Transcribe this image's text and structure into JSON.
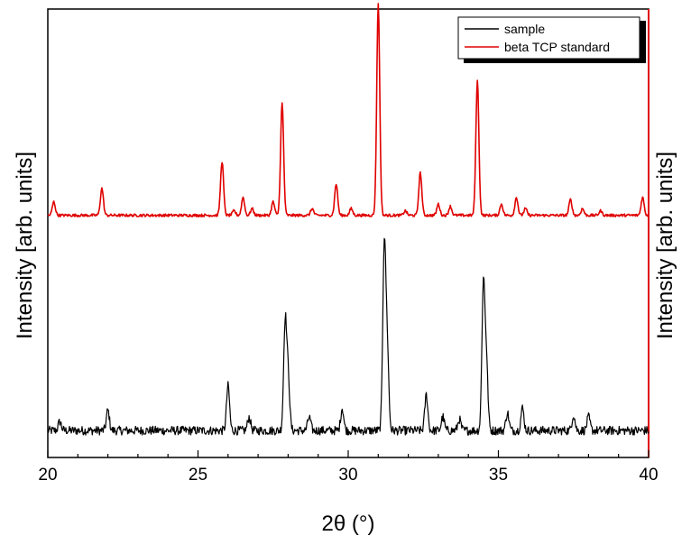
{
  "chart_data": {
    "type": "line",
    "xlabel": "2θ (°)",
    "ylabel_left": "Intensity [arb. units]",
    "ylabel_right": "Intensity [arb. units]",
    "xlim": [
      20,
      40
    ],
    "ylim": [
      0,
      1
    ],
    "x_ticks": [
      20,
      25,
      30,
      35,
      40
    ],
    "grid": false,
    "legend_position": "top-right",
    "series": [
      {
        "name": "sample",
        "color": "#000000",
        "baseline": 0.06,
        "noise": 0.01,
        "peaks": [
          {
            "x": 20.4,
            "h": 0.02
          },
          {
            "x": 22.0,
            "h": 0.045
          },
          {
            "x": 26.0,
            "h": 0.1
          },
          {
            "x": 26.7,
            "h": 0.03
          },
          {
            "x": 27.9,
            "h": 0.24
          },
          {
            "x": 28.0,
            "h": 0.12
          },
          {
            "x": 28.7,
            "h": 0.03
          },
          {
            "x": 29.8,
            "h": 0.05
          },
          {
            "x": 31.2,
            "h": 0.41
          },
          {
            "x": 31.3,
            "h": 0.18
          },
          {
            "x": 32.6,
            "h": 0.08
          },
          {
            "x": 33.15,
            "h": 0.03
          },
          {
            "x": 33.7,
            "h": 0.025
          },
          {
            "x": 34.5,
            "h": 0.32
          },
          {
            "x": 34.6,
            "h": 0.15
          },
          {
            "x": 35.3,
            "h": 0.04
          },
          {
            "x": 35.8,
            "h": 0.05
          },
          {
            "x": 37.5,
            "h": 0.035
          },
          {
            "x": 38.0,
            "h": 0.03
          }
        ]
      },
      {
        "name": "beta TCP standard",
        "color": "#e00000",
        "baseline": 0.54,
        "noise": 0.003,
        "peaks": [
          {
            "x": 20.2,
            "h": 0.03
          },
          {
            "x": 21.8,
            "h": 0.06
          },
          {
            "x": 25.8,
            "h": 0.12
          },
          {
            "x": 26.2,
            "h": 0.01
          },
          {
            "x": 26.5,
            "h": 0.04
          },
          {
            "x": 26.8,
            "h": 0.015
          },
          {
            "x": 27.5,
            "h": 0.03
          },
          {
            "x": 27.8,
            "h": 0.25
          },
          {
            "x": 28.8,
            "h": 0.015
          },
          {
            "x": 29.6,
            "h": 0.07
          },
          {
            "x": 30.1,
            "h": 0.015
          },
          {
            "x": 31.0,
            "h": 0.47
          },
          {
            "x": 31.9,
            "h": 0.01
          },
          {
            "x": 32.4,
            "h": 0.095
          },
          {
            "x": 33.0,
            "h": 0.025
          },
          {
            "x": 33.4,
            "h": 0.02
          },
          {
            "x": 34.3,
            "h": 0.3
          },
          {
            "x": 35.1,
            "h": 0.025
          },
          {
            "x": 35.6,
            "h": 0.04
          },
          {
            "x": 35.9,
            "h": 0.015
          },
          {
            "x": 37.4,
            "h": 0.035
          },
          {
            "x": 37.8,
            "h": 0.015
          },
          {
            "x": 38.4,
            "h": 0.01
          },
          {
            "x": 39.8,
            "h": 0.04
          }
        ]
      }
    ]
  }
}
